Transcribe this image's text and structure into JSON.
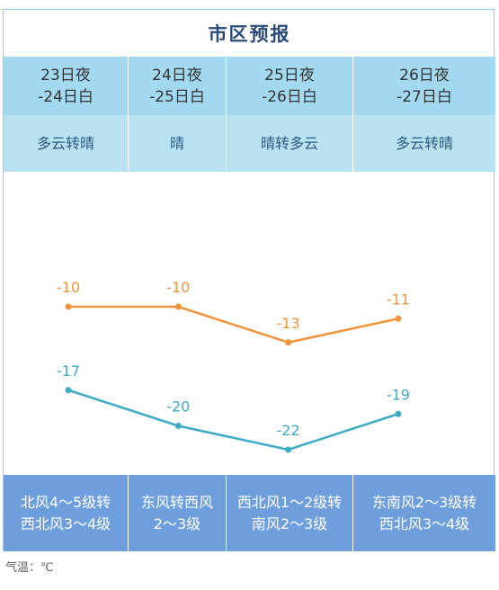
{
  "chart_data": {
    "type": "line",
    "title": "市区预报",
    "categories": [
      "23日夜\n-24日白",
      "24日夜\n-25日白",
      "25日夜\n-26日白",
      "26日夜\n-27日白"
    ],
    "weather": [
      "多云转晴",
      "晴",
      "晴转多云",
      "多云转晴"
    ],
    "series": [
      {
        "color": "#f0943c",
        "values": [
          -10,
          -10,
          -13,
          -11
        ]
      },
      {
        "color": "#3eaac4",
        "values": [
          -17,
          -20,
          -22,
          -19
        ]
      }
    ],
    "wind": [
      "北风4～5级转\n西北风3～4级",
      "东风转西风\n2～3级",
      "西北风1～2级转\n南风2～3级",
      "东南风2～3级转\n西北风3～4级"
    ],
    "note": "气温：℃"
  }
}
